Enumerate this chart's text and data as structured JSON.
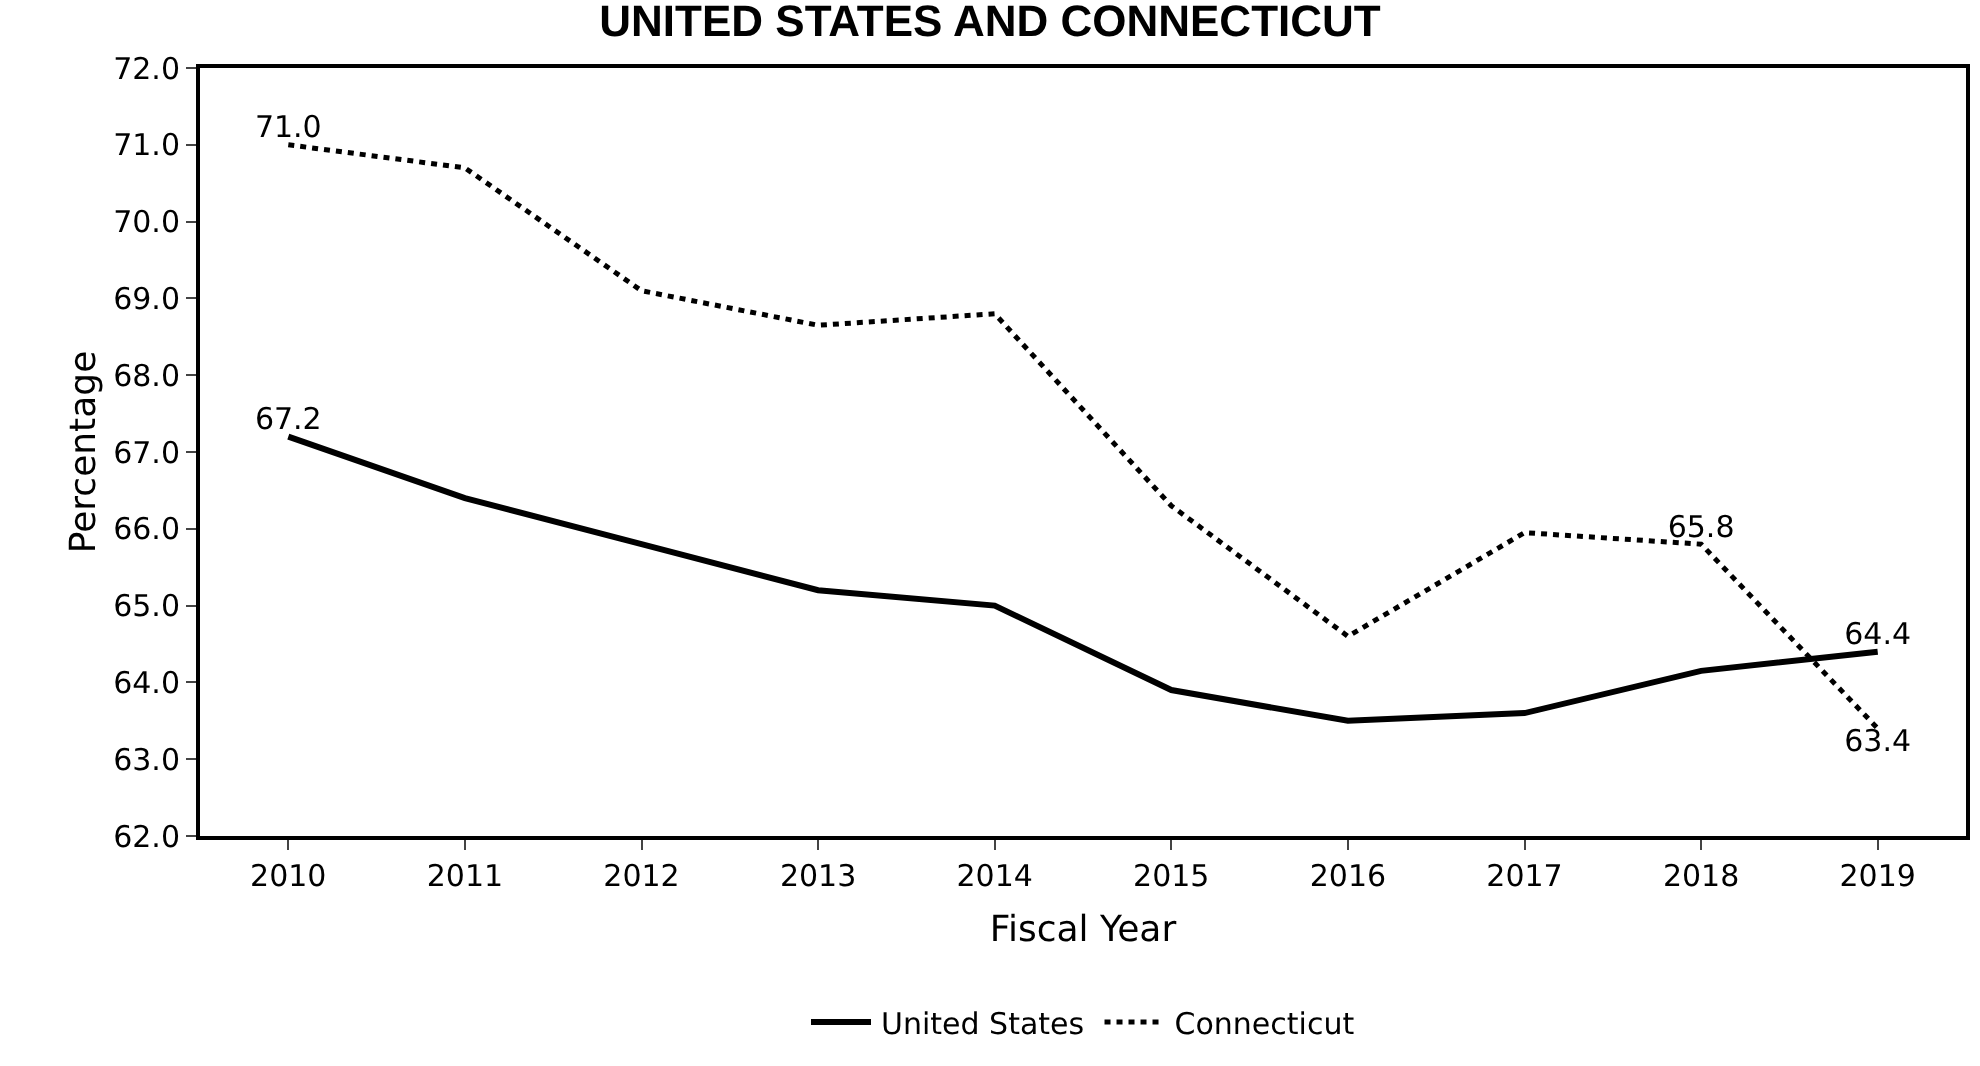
{
  "chart_data": {
    "type": "line",
    "title": "UNITED STATES AND CONNECTICUT",
    "xlabel": "Fiscal Year",
    "ylabel": "Percentage",
    "categories": [
      "2010",
      "2011",
      "2012",
      "2013",
      "2014",
      "2015",
      "2016",
      "2017",
      "2018",
      "2019"
    ],
    "series": [
      {
        "name": "United States",
        "color": "#000000",
        "line_style": "solid",
        "values": [
          67.2,
          66.4,
          65.8,
          65.2,
          65.0,
          63.9,
          63.5,
          63.6,
          64.15,
          64.4
        ],
        "value_labels": [
          "67.2",
          null,
          null,
          null,
          null,
          null,
          null,
          null,
          null,
          "64.4"
        ]
      },
      {
        "name": "Connecticut",
        "color": "#000000",
        "line_style": "dotted",
        "values": [
          71.0,
          70.7,
          69.1,
          68.65,
          68.8,
          66.3,
          64.6,
          65.95,
          65.8,
          63.4
        ],
        "value_labels": [
          "71.0",
          null,
          null,
          null,
          null,
          null,
          null,
          null,
          "65.8",
          "63.4"
        ]
      }
    ],
    "ylim": [
      62.0,
      72.0
    ],
    "yticks": [
      {
        "value": 62,
        "label": "62.0"
      },
      {
        "value": 63,
        "label": "63.0"
      },
      {
        "value": 64,
        "label": "64.0"
      },
      {
        "value": 65,
        "label": "65.0"
      },
      {
        "value": 66,
        "label": "66.0"
      },
      {
        "value": 67,
        "label": "67.0"
      },
      {
        "value": 68,
        "label": "68.0"
      },
      {
        "value": 69,
        "label": "69.0"
      },
      {
        "value": 70,
        "label": "70.0"
      },
      {
        "value": 71,
        "label": "71.0"
      },
      {
        "value": 72,
        "label": "72.0"
      }
    ],
    "legend": "bottom"
  }
}
